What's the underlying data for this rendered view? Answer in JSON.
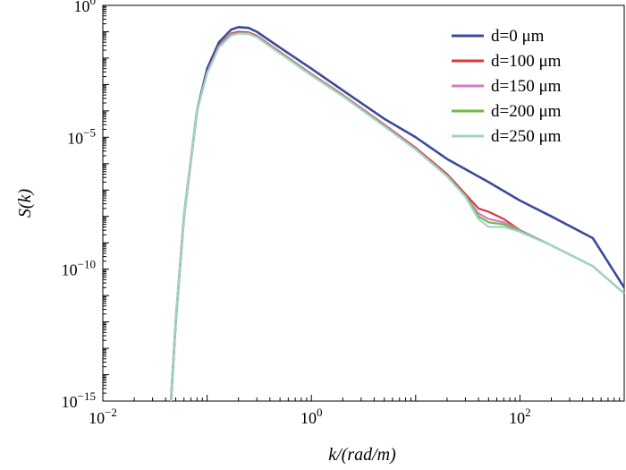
{
  "chart_data": {
    "type": "line",
    "xscale": "log",
    "yscale": "log",
    "xlim": [
      0.01,
      1000
    ],
    "ylim": [
      1e-15,
      1
    ],
    "xlabel": "k/(rad/m)",
    "ylabel": "S(k)",
    "xticks": [
      {
        "value": 0.01,
        "base": "10",
        "exp": "−2"
      },
      {
        "value": 1,
        "base": "10",
        "exp": "0"
      },
      {
        "value": 100,
        "base": "10",
        "exp": "2"
      }
    ],
    "yticks": [
      {
        "value": 1,
        "base": "10",
        "exp": "0"
      },
      {
        "value": 1e-05,
        "base": "10",
        "exp": "−5"
      },
      {
        "value": 1e-10,
        "base": "10",
        "exp": "−10"
      },
      {
        "value": 1e-15,
        "base": "10",
        "exp": "−15"
      }
    ],
    "legend_position": "top-right",
    "series": [
      {
        "name": "d=0 μm",
        "color": "#3B4A9C",
        "points": [
          [
            0.045,
            1e-15
          ],
          [
            0.05,
            1e-12
          ],
          [
            0.06,
            1e-08
          ],
          [
            0.08,
            0.0001
          ],
          [
            0.1,
            0.004
          ],
          [
            0.13,
            0.04
          ],
          [
            0.17,
            0.12
          ],
          [
            0.2,
            0.15
          ],
          [
            0.25,
            0.14
          ],
          [
            0.3,
            0.1
          ],
          [
            0.5,
            0.025
          ],
          [
            1,
            0.004
          ],
          [
            2,
            0.0006
          ],
          [
            5,
            5e-05
          ],
          [
            10,
            1e-05
          ],
          [
            20,
            1.5e-06
          ],
          [
            50,
            2e-07
          ],
          [
            100,
            4e-08
          ],
          [
            200,
            1e-08
          ],
          [
            500,
            1.5e-09
          ],
          [
            1000,
            2e-11
          ]
        ]
      },
      {
        "name": "d=100 μm",
        "color": "#D93A3A",
        "points": [
          [
            0.045,
            1e-15
          ],
          [
            0.05,
            1e-12
          ],
          [
            0.06,
            1e-08
          ],
          [
            0.08,
            0.0001
          ],
          [
            0.1,
            0.003
          ],
          [
            0.13,
            0.03
          ],
          [
            0.17,
            0.085
          ],
          [
            0.2,
            0.1
          ],
          [
            0.25,
            0.095
          ],
          [
            0.3,
            0.07
          ],
          [
            0.5,
            0.017
          ],
          [
            1,
            0.0025
          ],
          [
            2,
            0.0004
          ],
          [
            5,
            3e-05
          ],
          [
            10,
            4e-06
          ],
          [
            20,
            4e-07
          ],
          [
            30,
            7e-08
          ],
          [
            40,
            2e-08
          ],
          [
            50,
            1.5e-08
          ],
          [
            70,
            8e-09
          ],
          [
            100,
            3e-09
          ],
          [
            200,
            8e-10
          ],
          [
            500,
            1.3e-10
          ],
          [
            1000,
            1.2e-11
          ]
        ]
      },
      {
        "name": "d=150 μm",
        "color": "#D67BC4",
        "points": [
          [
            0.045,
            1e-15
          ],
          [
            0.05,
            1e-12
          ],
          [
            0.06,
            1e-08
          ],
          [
            0.08,
            0.0001
          ],
          [
            0.1,
            0.0028
          ],
          [
            0.13,
            0.028
          ],
          [
            0.17,
            0.078
          ],
          [
            0.2,
            0.09
          ],
          [
            0.25,
            0.088
          ],
          [
            0.3,
            0.065
          ],
          [
            0.5,
            0.016
          ],
          [
            1,
            0.0024
          ],
          [
            2,
            0.00038
          ],
          [
            5,
            2.8e-05
          ],
          [
            10,
            3.6e-06
          ],
          [
            20,
            3.5e-07
          ],
          [
            30,
            6e-08
          ],
          [
            40,
            1.3e-08
          ],
          [
            50,
            8e-09
          ],
          [
            70,
            6e-09
          ],
          [
            100,
            3e-09
          ],
          [
            200,
            8e-10
          ],
          [
            500,
            1.3e-10
          ],
          [
            1000,
            1.2e-11
          ]
        ]
      },
      {
        "name": "d=200 μm",
        "color": "#6DBB45",
        "points": [
          [
            0.045,
            1e-15
          ],
          [
            0.05,
            1e-12
          ],
          [
            0.06,
            1e-08
          ],
          [
            0.08,
            0.0001
          ],
          [
            0.1,
            0.0027
          ],
          [
            0.13,
            0.027
          ],
          [
            0.17,
            0.075
          ],
          [
            0.2,
            0.087
          ],
          [
            0.25,
            0.085
          ],
          [
            0.3,
            0.063
          ],
          [
            0.5,
            0.0155
          ],
          [
            1,
            0.0023
          ],
          [
            2,
            0.00037
          ],
          [
            5,
            2.7e-05
          ],
          [
            10,
            3.5e-06
          ],
          [
            20,
            3.4e-07
          ],
          [
            30,
            6e-08
          ],
          [
            40,
            1e-08
          ],
          [
            50,
            6e-09
          ],
          [
            70,
            5e-09
          ],
          [
            100,
            2.8e-09
          ],
          [
            200,
            8e-10
          ],
          [
            500,
            1.3e-10
          ],
          [
            1000,
            1.2e-11
          ]
        ]
      },
      {
        "name": "d=250 μm",
        "color": "#9FD4CC",
        "points": [
          [
            0.045,
            1e-15
          ],
          [
            0.05,
            1e-12
          ],
          [
            0.06,
            1e-08
          ],
          [
            0.08,
            0.0001
          ],
          [
            0.1,
            0.0026
          ],
          [
            0.13,
            0.026
          ],
          [
            0.17,
            0.072
          ],
          [
            0.2,
            0.085
          ],
          [
            0.25,
            0.083
          ],
          [
            0.3,
            0.062
          ],
          [
            0.5,
            0.015
          ],
          [
            1,
            0.0022
          ],
          [
            2,
            0.00036
          ],
          [
            5,
            2.6e-05
          ],
          [
            10,
            3.4e-06
          ],
          [
            20,
            3.3e-07
          ],
          [
            30,
            5.5e-08
          ],
          [
            40,
            8e-09
          ],
          [
            50,
            4e-09
          ],
          [
            70,
            4e-09
          ],
          [
            100,
            2.6e-09
          ],
          [
            200,
            8e-10
          ],
          [
            500,
            1.3e-10
          ],
          [
            1000,
            1.2e-11
          ]
        ]
      }
    ]
  }
}
